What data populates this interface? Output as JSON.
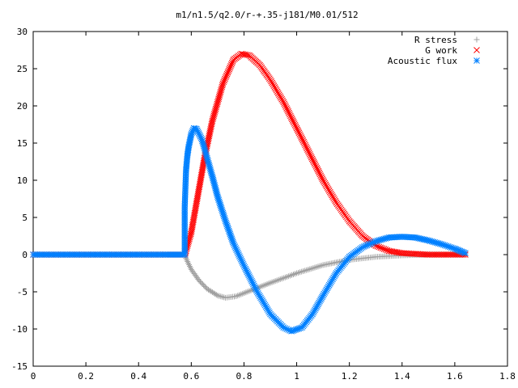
{
  "chart_data": {
    "type": "scatter",
    "title": "m1/n1.5/q2.0/r-+.35-j181/M0.01/512",
    "xlabel": "",
    "ylabel": "",
    "xlim": [
      0,
      1.8
    ],
    "ylim": [
      -15,
      30
    ],
    "x_ticks": [
      "0",
      "0.2",
      "0.4",
      "0.6",
      "0.8",
      "1",
      "1.2",
      "1.4",
      "1.6",
      "1.8"
    ],
    "y_ticks": [
      "-15",
      "-10",
      "-5",
      "0",
      "5",
      "10",
      "15",
      "20",
      "25",
      "30"
    ],
    "grid": false,
    "legend_position": "top-right",
    "series": [
      {
        "name": "R stress",
        "marker": "plus",
        "color": "#a0a0a0",
        "points": [
          [
            0.0,
            0
          ],
          [
            0.1,
            0
          ],
          [
            0.2,
            0
          ],
          [
            0.3,
            0
          ],
          [
            0.4,
            0
          ],
          [
            0.5,
            0
          ],
          [
            0.575,
            0
          ],
          [
            0.58,
            -0.5
          ],
          [
            0.6,
            -2.0
          ],
          [
            0.63,
            -3.5
          ],
          [
            0.66,
            -4.6
          ],
          [
            0.7,
            -5.5
          ],
          [
            0.73,
            -5.8
          ],
          [
            0.77,
            -5.6
          ],
          [
            0.82,
            -4.9
          ],
          [
            0.9,
            -3.8
          ],
          [
            1.0,
            -2.5
          ],
          [
            1.1,
            -1.4
          ],
          [
            1.2,
            -0.7
          ],
          [
            1.3,
            -0.3
          ],
          [
            1.4,
            -0.1
          ],
          [
            1.5,
            0
          ],
          [
            1.6,
            0
          ],
          [
            1.64,
            0
          ]
        ]
      },
      {
        "name": "G work",
        "marker": "cross",
        "color": "#ff0000",
        "points": [
          [
            0.0,
            0
          ],
          [
            0.1,
            0
          ],
          [
            0.2,
            0
          ],
          [
            0.3,
            0
          ],
          [
            0.4,
            0
          ],
          [
            0.5,
            0
          ],
          [
            0.575,
            0
          ],
          [
            0.58,
            0.5
          ],
          [
            0.6,
            3.0
          ],
          [
            0.62,
            7.0
          ],
          [
            0.65,
            13.0
          ],
          [
            0.68,
            18.0
          ],
          [
            0.72,
            23.0
          ],
          [
            0.76,
            26.2
          ],
          [
            0.79,
            27.0
          ],
          [
            0.82,
            26.8
          ],
          [
            0.86,
            25.5
          ],
          [
            0.9,
            23.5
          ],
          [
            0.95,
            20.5
          ],
          [
            1.0,
            17.0
          ],
          [
            1.05,
            13.5
          ],
          [
            1.1,
            10.0
          ],
          [
            1.15,
            7.0
          ],
          [
            1.2,
            4.5
          ],
          [
            1.25,
            2.5
          ],
          [
            1.3,
            1.2
          ],
          [
            1.35,
            0.5
          ],
          [
            1.4,
            0.2
          ],
          [
            1.5,
            0
          ],
          [
            1.6,
            0
          ],
          [
            1.64,
            0
          ]
        ]
      },
      {
        "name": "Acoustic flux",
        "marker": "star",
        "color": "#0080ff",
        "points": [
          [
            0.0,
            0
          ],
          [
            0.1,
            0
          ],
          [
            0.2,
            0
          ],
          [
            0.3,
            0
          ],
          [
            0.4,
            0
          ],
          [
            0.5,
            0
          ],
          [
            0.575,
            0
          ],
          [
            0.575,
            6.3
          ],
          [
            0.58,
            11.3
          ],
          [
            0.585,
            13.3
          ],
          [
            0.59,
            14.5
          ],
          [
            0.6,
            16.2
          ],
          [
            0.61,
            17.0
          ],
          [
            0.62,
            16.9
          ],
          [
            0.64,
            15.5
          ],
          [
            0.66,
            13.0
          ],
          [
            0.68,
            10.5
          ],
          [
            0.7,
            7.8
          ],
          [
            0.73,
            4.5
          ],
          [
            0.76,
            1.5
          ],
          [
            0.8,
            -1.5
          ],
          [
            0.85,
            -5.0
          ],
          [
            0.9,
            -8.0
          ],
          [
            0.95,
            -9.8
          ],
          [
            0.98,
            -10.3
          ],
          [
            1.02,
            -9.8
          ],
          [
            1.06,
            -8.0
          ],
          [
            1.1,
            -5.5
          ],
          [
            1.15,
            -2.5
          ],
          [
            1.2,
            -0.3
          ],
          [
            1.25,
            1.0
          ],
          [
            1.3,
            1.8
          ],
          [
            1.35,
            2.3
          ],
          [
            1.4,
            2.4
          ],
          [
            1.45,
            2.3
          ],
          [
            1.5,
            1.9
          ],
          [
            1.55,
            1.4
          ],
          [
            1.6,
            0.8
          ],
          [
            1.62,
            0.5
          ],
          [
            1.64,
            0.2
          ]
        ]
      }
    ]
  }
}
